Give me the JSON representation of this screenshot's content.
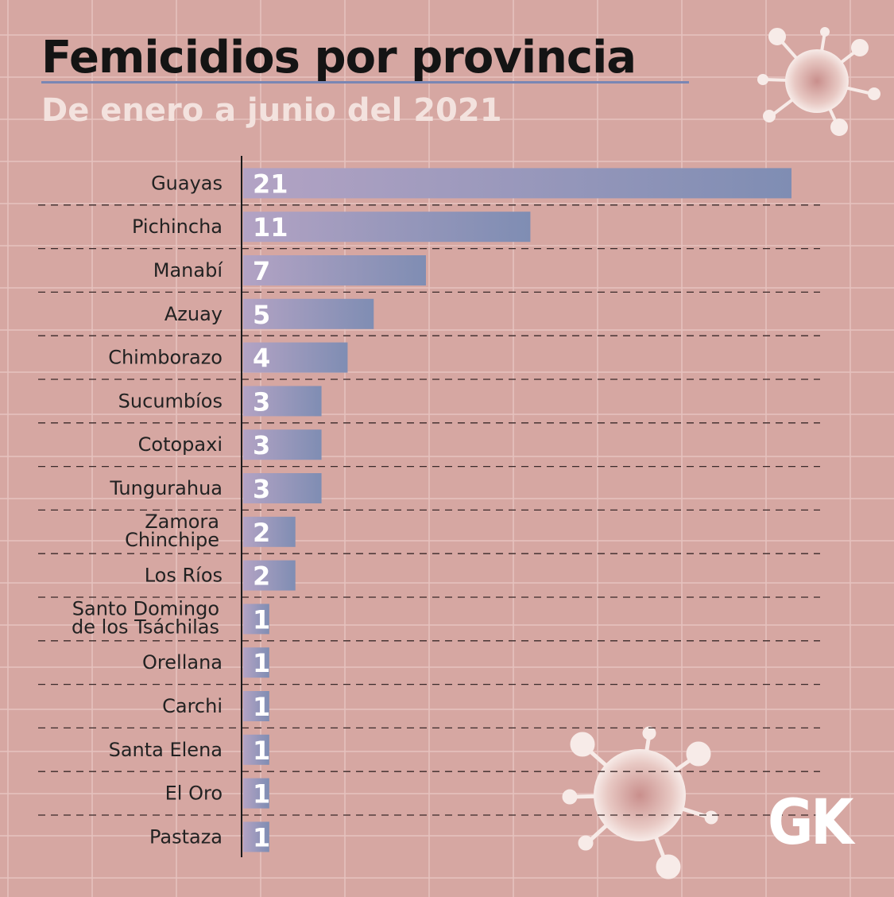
{
  "chart_data": {
    "type": "bar",
    "orientation": "horizontal",
    "title": "Femicidios por provincia",
    "subtitle": "De enero a junio del 2021",
    "categories": [
      "Guayas",
      "Pichincha",
      "Manabí",
      "Azuay",
      "Chimborazo",
      "Sucumbíos",
      "Cotopaxi",
      "Tungurahua",
      "Zamora Chinchipe",
      "Los Ríos",
      "Santo Domingo de los Tsáchilas",
      "Orellana",
      "Carchi",
      "Santa Elena",
      "El Oro",
      "Pastaza"
    ],
    "category_lines": [
      [
        "Guayas"
      ],
      [
        "Pichincha"
      ],
      [
        "Manabí"
      ],
      [
        "Azuay"
      ],
      [
        "Chimborazo"
      ],
      [
        "Sucumbíos"
      ],
      [
        "Cotopaxi"
      ],
      [
        "Tungurahua"
      ],
      [
        "Zamora",
        "Chinchipe"
      ],
      [
        "Los Ríos"
      ],
      [
        "Santo Domingo",
        "de los Tsáchilas"
      ],
      [
        "Orellana"
      ],
      [
        "Carchi"
      ],
      [
        "Santa Elena"
      ],
      [
        "El Oro"
      ],
      [
        "Pastaza"
      ]
    ],
    "values": [
      21,
      11,
      7,
      5,
      4,
      3,
      3,
      3,
      2,
      2,
      1,
      1,
      1,
      1,
      1,
      1
    ],
    "xlabel": "",
    "ylabel": "",
    "xlim": [
      0,
      21
    ],
    "grid": true,
    "colors": {
      "bar_start": "#b3a3c4",
      "bar_end": "#7f8db3",
      "background": "#d6a7a2"
    }
  },
  "logo": "GK",
  "decorations": [
    "virus-icon",
    "virus-icon"
  ]
}
